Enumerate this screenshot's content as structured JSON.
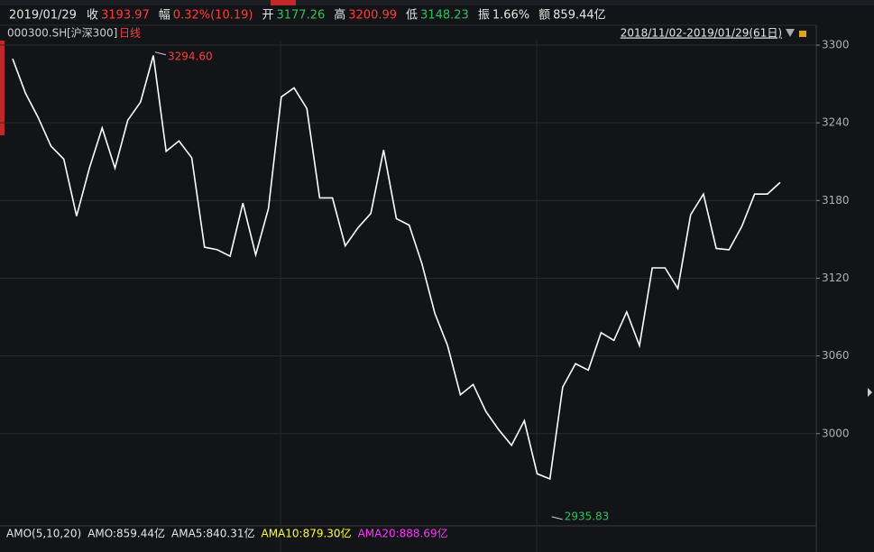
{
  "info_bar": {
    "date": "2019/01/29",
    "items": [
      {
        "label": "收",
        "value": "3193.97",
        "color": "#ff3b3b"
      },
      {
        "label": "幅",
        "value": "0.32%(10.19)",
        "color": "#ff3b3b"
      },
      {
        "label": "开",
        "value": "3177.26",
        "color": "#2fc25b"
      },
      {
        "label": "高",
        "value": "3200.99",
        "color": "#ff3b3b"
      },
      {
        "label": "低",
        "value": "3148.23",
        "color": "#2fc25b"
      },
      {
        "label": "振",
        "value": "1.66%",
        "color": "#e6e6e6"
      },
      {
        "label": "额",
        "value": "859.44亿",
        "color": "#e6e6e6"
      }
    ]
  },
  "header": {
    "code": "000300.SH",
    "name": "[沪深300]",
    "period": "日线",
    "range": "2018/11/02-2019/01/29(61日)"
  },
  "chart_data": {
    "type": "line",
    "series": [
      {
        "color": "#ffffff",
        "values": [
          3289.5,
          3263,
          3244,
          3222,
          3212,
          3168,
          3205,
          3236,
          3205,
          3242,
          3256,
          3292,
          3218,
          3226,
          3213,
          3144,
          3142,
          3137,
          3178,
          3138,
          3174,
          3260,
          3267,
          3251,
          3182,
          3182,
          3145,
          3159,
          3170,
          3219,
          3166,
          3161,
          3131,
          3093,
          3068,
          3030,
          3038,
          3017,
          3003,
          2991,
          3010,
          2969,
          2965,
          3036,
          3054,
          3049,
          3078,
          3072,
          3094,
          3068,
          3128,
          3128,
          3112,
          3169,
          3185,
          3143,
          3142,
          3160,
          3185,
          3185,
          3194
        ]
      }
    ],
    "ylim": [
      2928.8,
      3304.9
    ],
    "yticks": [
      3000,
      3060,
      3120,
      3180,
      3240,
      3300
    ],
    "grid": true,
    "annotations": [
      {
        "text": "3294.60",
        "index": 11,
        "value": 3294.6,
        "color": "#ff3b3b"
      },
      {
        "text": "2935.83",
        "index": 42,
        "value": 2935.83,
        "color": "#2fc25b"
      }
    ]
  },
  "footer": {
    "items": [
      {
        "text": "AMO(5,10,20)",
        "color": "#e6e6e6"
      },
      {
        "text": "AMO:859.44亿",
        "color": "#e6e6e6"
      },
      {
        "text": "AMA5:840.31亿",
        "color": "#e6e6e6"
      },
      {
        "text": "AMA10:879.30亿",
        "color": "#ffff33"
      },
      {
        "text": "AMA20:888.69亿",
        "color": "#ff33ff"
      }
    ]
  }
}
